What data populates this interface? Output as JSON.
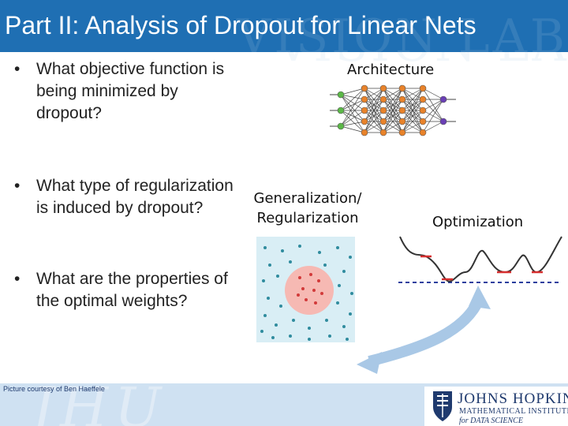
{
  "slide": {
    "title": "Part II: Analysis of Dropout for Linear Nets",
    "bullets": [
      {
        "marker": "•",
        "text": "What objective function is being minimized by dropout?"
      },
      {
        "marker": "•",
        "text": "What type of regularization is induced by dropout?"
      },
      {
        "marker": "•",
        "text": "What are the properties of the optimal weights?"
      }
    ]
  },
  "diagram": {
    "architecture_label": "Architecture",
    "generalization_label_line1": "Generalization/",
    "generalization_label_line2": "Regularization",
    "optimization_label": "Optimization"
  },
  "footer": {
    "courtesy": "Picture courtesy of Ben Haeffele",
    "logo_title": "JOHNS HOPKINS",
    "logo_sub1": "MATHEMATICAL INSTITUTE",
    "logo_sub2": "for DATA SCIENCE"
  },
  "colors": {
    "title_bar": "#1f6fb3",
    "input_node": "#5bb847",
    "hidden_node": "#e8822a",
    "output_node": "#6a3fb5",
    "scatter_bg": "#d9eef5",
    "scatter_dot": "#2f8c9e",
    "region_fill": "#f6b9b3",
    "region_dot": "#d23a3a",
    "curve": "#333333",
    "min_mark": "#d62f2f",
    "dashed": "#2b3f9e",
    "arrow": "#a9c8e6"
  },
  "icons": [
    "network-icon",
    "scatter-icon",
    "loss-curve-icon",
    "double-arrow-icon",
    "jhu-shield-icon"
  ]
}
